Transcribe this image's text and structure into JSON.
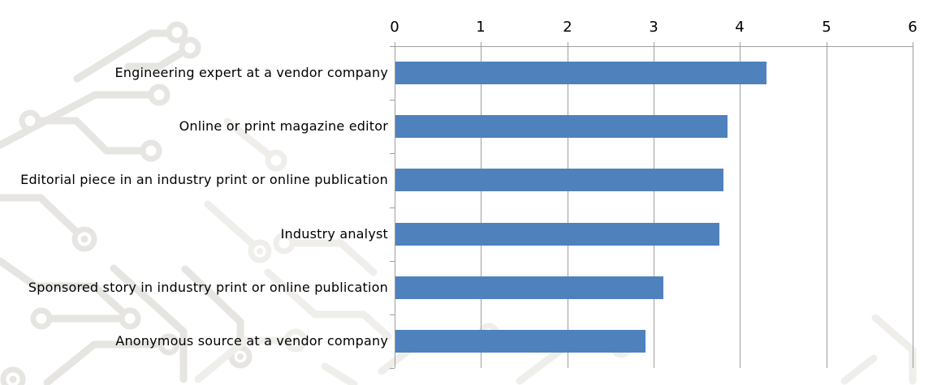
{
  "chart_data": {
    "type": "bar",
    "orientation": "horizontal",
    "title": "",
    "categories": [
      "Engineering expert at a vendor company",
      "Online or print magazine editor",
      "Editorial piece in an industry print or online publication",
      "Industry analyst",
      "Sponsored story in industry print or online publication",
      "Anonymous source at a vendor company"
    ],
    "values": [
      4.3,
      3.85,
      3.8,
      3.75,
      3.1,
      2.9
    ],
    "xlim": [
      0,
      6
    ],
    "x_ticks": [
      "0",
      "1",
      "2",
      "3",
      "4",
      "5",
      "6"
    ],
    "value_axis_position": "top",
    "grid": "vertical gridlines at integer values",
    "legend": "none",
    "colors": {
      "bar": "#4f81bd",
      "gridline": "#9e9e9e",
      "axis_text": "#000000"
    }
  },
  "background": {
    "description": "faint circuit-board watermark pattern",
    "color": "#e6e5e1",
    "color_light": "#efeeeb"
  }
}
